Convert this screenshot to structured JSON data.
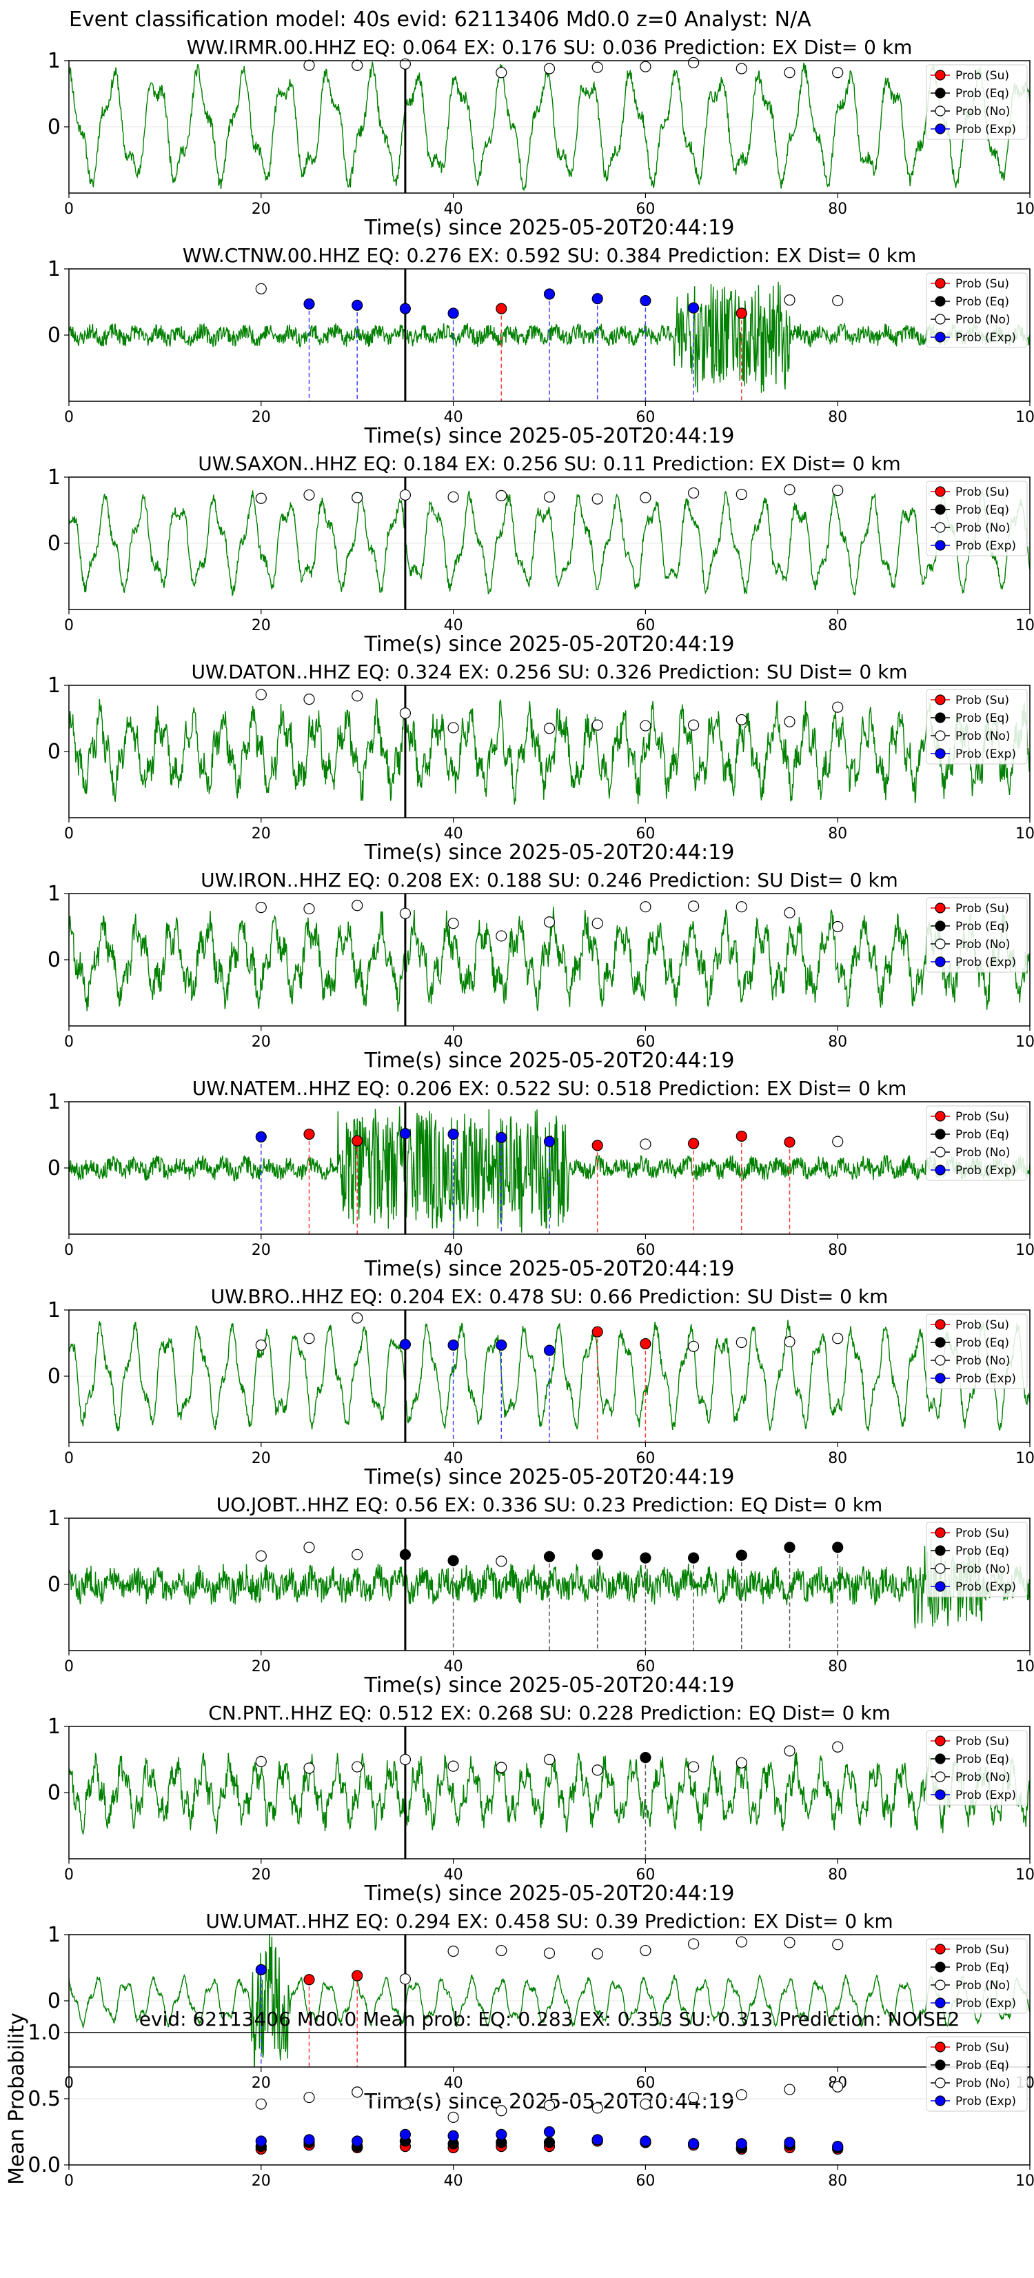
{
  "figure_title": "Event classification model: 40s evid: 62113406 Md0.0 z=0 Analyst: N/A",
  "colors": {
    "waveform": "#008000",
    "su": "#ff0000",
    "eq": "#000000",
    "no": "#ffffff",
    "exp": "#0000ff",
    "line_su": "#ff3b3b",
    "line_eq": "#555555",
    "line_exp": "#4040ff",
    "origin_line": "#000000"
  },
  "legend": [
    "Prob (Su)",
    "Prob (Eq)",
    "Prob (No)",
    "Prob (Exp)"
  ],
  "chart_data": [
    {
      "type": "line",
      "title": "WW.IRMR.00.HHZ   EQ: 0.064  EX: 0.176  SU: 0.036   Prediction: EX    Dist= 0 km",
      "xlabel": "Time(s) since 2025-05-20T20:44:19",
      "xlim": [
        0,
        100
      ],
      "xticks": [
        0,
        20,
        40,
        60,
        80,
        100
      ],
      "ylim": [
        -1,
        1
      ],
      "yticks": [
        1,
        0
      ],
      "origin_time": 35,
      "waveform": {
        "amp": 0.85,
        "mode": "osc",
        "period": 4.5,
        "seed": 11
      },
      "dots": {
        "x": [
          20,
          25,
          30,
          35,
          40,
          45,
          50,
          55,
          60,
          65,
          70,
          75,
          80
        ],
        "y": [
          null,
          0.93,
          0.93,
          0.95,
          null,
          0.82,
          0.88,
          0.9,
          0.91,
          0.97,
          0.88,
          0.82,
          0.82
        ],
        "class": [
          "",
          "No",
          "No",
          "No",
          "",
          "No",
          "No",
          "No",
          "No",
          "No",
          "No",
          "No",
          "No"
        ]
      }
    },
    {
      "type": "line",
      "title": "WW.CTNW.00.HHZ   EQ: 0.276  EX: 0.592  SU: 0.384   Prediction: EX    Dist= 0 km",
      "xlabel": "Time(s) since 2025-05-20T20:44:19",
      "xlim": [
        0,
        100
      ],
      "xticks": [
        0,
        20,
        40,
        60,
        80,
        100
      ],
      "ylim": [
        -1,
        1
      ],
      "yticks": [
        1,
        0
      ],
      "origin_time": 35,
      "waveform": {
        "amp": 0.2,
        "mode": "noise",
        "burst": [
          63,
          75,
          0.85
        ],
        "seed": 23
      },
      "dots": {
        "x": [
          20,
          25,
          30,
          35,
          40,
          45,
          50,
          55,
          60,
          65,
          70,
          75,
          80
        ],
        "y": [
          0.7,
          0.47,
          0.45,
          0.4,
          0.33,
          0.4,
          0.62,
          0.55,
          0.52,
          0.41,
          0.33,
          0.53,
          0.52
        ],
        "class": [
          "No",
          "Exp",
          "Exp",
          "Exp",
          "Exp",
          "Su",
          "Exp",
          "Exp",
          "Exp",
          "Exp",
          "Su",
          "No",
          "No"
        ]
      }
    },
    {
      "type": "line",
      "title": "UW.SAXON..HHZ   EQ: 0.184  EX: 0.256  SU: 0.11   Prediction: EX    Dist= 0 km",
      "xlabel": "Time(s) since 2025-05-20T20:44:19",
      "xlim": [
        0,
        100
      ],
      "xticks": [
        0,
        20,
        40,
        60,
        80,
        100
      ],
      "ylim": [
        -1,
        1
      ],
      "yticks": [
        1,
        0
      ],
      "origin_time": 35,
      "waveform": {
        "amp": 0.7,
        "mode": "osc",
        "period": 3.8,
        "seed": 37
      },
      "dots": {
        "x": [
          20,
          25,
          30,
          35,
          40,
          45,
          50,
          55,
          60,
          65,
          70,
          75,
          80
        ],
        "y": [
          0.68,
          0.73,
          0.69,
          0.73,
          0.7,
          0.72,
          0.7,
          0.67,
          0.69,
          0.76,
          0.74,
          0.81,
          0.8
        ],
        "class": [
          "No",
          "No",
          "No",
          "No",
          "No",
          "No",
          "No",
          "No",
          "No",
          "No",
          "No",
          "No",
          "No"
        ]
      }
    },
    {
      "type": "line",
      "title": "UW.DATON..HHZ   EQ: 0.324  EX: 0.256  SU: 0.326   Prediction: SU    Dist= 0 km",
      "xlabel": "Time(s) since 2025-05-20T20:44:19",
      "xlim": [
        0,
        100
      ],
      "xticks": [
        0,
        20,
        40,
        60,
        80,
        100
      ],
      "ylim": [
        -1,
        1
      ],
      "yticks": [
        1,
        0
      ],
      "origin_time": 35,
      "waveform": {
        "amp": 0.75,
        "mode": "mix",
        "period": 3.2,
        "seed": 41
      },
      "dots": {
        "x": [
          20,
          25,
          30,
          35,
          40,
          45,
          50,
          55,
          60,
          65,
          70,
          75,
          80
        ],
        "y": [
          0.86,
          0.79,
          0.84,
          0.58,
          0.36,
          null,
          0.35,
          0.4,
          0.39,
          0.4,
          0.48,
          0.45,
          0.67
        ],
        "class": [
          "No",
          "No",
          "No",
          "No",
          "No",
          "",
          "No",
          "No",
          "No",
          "No",
          "No",
          "No",
          "No"
        ]
      }
    },
    {
      "type": "line",
      "title": "UW.IRON..HHZ   EQ: 0.208  EX: 0.188  SU: 0.246   Prediction: SU    Dist= 0 km",
      "xlabel": "Time(s) since 2025-05-20T20:44:19",
      "xlim": [
        0,
        100
      ],
      "xticks": [
        0,
        20,
        40,
        60,
        80,
        100
      ],
      "ylim": [
        -1,
        1
      ],
      "yticks": [
        1,
        0
      ],
      "origin_time": 35,
      "waveform": {
        "amp": 0.75,
        "mode": "mix",
        "period": 3.6,
        "seed": 53
      },
      "dots": {
        "x": [
          20,
          25,
          30,
          35,
          40,
          45,
          50,
          55,
          60,
          65,
          70,
          75,
          80
        ],
        "y": [
          0.79,
          0.77,
          0.82,
          0.7,
          0.55,
          0.36,
          0.57,
          0.55,
          0.8,
          0.81,
          0.8,
          0.71,
          0.5
        ],
        "class": [
          "No",
          "No",
          "No",
          "No",
          "No",
          "No",
          "No",
          "No",
          "No",
          "No",
          "No",
          "No",
          "No"
        ]
      }
    },
    {
      "type": "line",
      "title": "UW.NATEM..HHZ   EQ: 0.206  EX: 0.522  SU: 0.518   Prediction: EX    Dist= 0 km",
      "xlabel": "Time(s) since 2025-05-20T20:44:19",
      "xlim": [
        0,
        100
      ],
      "xticks": [
        0,
        20,
        40,
        60,
        80,
        100
      ],
      "ylim": [
        -1,
        1
      ],
      "yticks": [
        1,
        0
      ],
      "origin_time": 35,
      "waveform": {
        "amp": 0.22,
        "mode": "noise",
        "burst": [
          28,
          52,
          0.9
        ],
        "seed": 67
      },
      "dots": {
        "x": [
          20,
          25,
          30,
          35,
          40,
          45,
          50,
          55,
          60,
          65,
          70,
          75,
          80
        ],
        "y": [
          0.47,
          0.51,
          0.41,
          0.52,
          0.51,
          0.46,
          0.4,
          0.34,
          0.36,
          0.37,
          0.48,
          0.39,
          0.4
        ],
        "class": [
          "Exp",
          "Su",
          "Su",
          "Exp",
          "Exp",
          "Exp",
          "Exp",
          "Su",
          "No",
          "Su",
          "Su",
          "Su",
          "No"
        ]
      }
    },
    {
      "type": "line",
      "title": "UW.BRO..HHZ   EQ: 0.204  EX: 0.478  SU: 0.66   Prediction: SU    Dist= 0 km",
      "xlabel": "Time(s) since 2025-05-20T20:44:19",
      "xlim": [
        0,
        100
      ],
      "xticks": [
        0,
        20,
        40,
        60,
        80,
        100
      ],
      "ylim": [
        -1,
        1
      ],
      "yticks": [
        1,
        0
      ],
      "origin_time": 35,
      "waveform": {
        "amp": 0.75,
        "mode": "osc",
        "period": 3.4,
        "seed": 71
      },
      "dots": {
        "x": [
          20,
          25,
          30,
          35,
          40,
          45,
          50,
          55,
          60,
          65,
          70,
          75,
          80
        ],
        "y": [
          0.47,
          0.57,
          0.88,
          0.48,
          0.47,
          0.47,
          0.39,
          0.67,
          0.49,
          0.45,
          0.51,
          0.52,
          0.57
        ],
        "class": [
          "No",
          "No",
          "No",
          "Exp",
          "Exp",
          "Exp",
          "Exp",
          "Su",
          "Su",
          "No",
          "No",
          "No",
          "No"
        ]
      }
    },
    {
      "type": "line",
      "title": "UO.JOBT..HHZ   EQ: 0.56  EX: 0.336  SU: 0.23   Prediction: EQ    Dist= 0 km",
      "xlabel": "Time(s) since 2025-05-20T20:44:19",
      "xlim": [
        0,
        100
      ],
      "xticks": [
        0,
        20,
        40,
        60,
        80,
        100
      ],
      "ylim": [
        -1,
        1
      ],
      "yticks": [
        1,
        0
      ],
      "origin_time": 35,
      "waveform": {
        "amp": 0.35,
        "mode": "noise",
        "burst": [
          88,
          95,
          0.6
        ],
        "seed": 83
      },
      "dots": {
        "x": [
          20,
          25,
          30,
          35,
          40,
          45,
          50,
          55,
          60,
          65,
          70,
          75,
          80
        ],
        "y": [
          0.43,
          0.56,
          0.45,
          0.45,
          0.36,
          0.35,
          0.42,
          0.45,
          0.4,
          0.4,
          0.44,
          0.56,
          0.56
        ],
        "class": [
          "No",
          "No",
          "No",
          "Eq",
          "Eq",
          "No",
          "Eq",
          "Eq",
          "Eq",
          "Eq",
          "Eq",
          "Eq",
          "Eq"
        ]
      }
    },
    {
      "type": "line",
      "title": "CN.PNT..HHZ   EQ: 0.512  EX: 0.268  SU: 0.228   Prediction: EQ    Dist= 0 km",
      "xlabel": "Time(s) since 2025-05-20T20:44:19",
      "xlim": [
        0,
        100
      ],
      "xticks": [
        0,
        20,
        40,
        60,
        80,
        100
      ],
      "ylim": [
        -1,
        1
      ],
      "yticks": [
        1,
        0
      ],
      "origin_time": 35,
      "waveform": {
        "amp": 0.6,
        "mode": "mix",
        "period": 2.8,
        "seed": 97
      },
      "dots": {
        "x": [
          20,
          25,
          30,
          35,
          40,
          45,
          50,
          55,
          60,
          65,
          70,
          75,
          80
        ],
        "y": [
          0.47,
          0.37,
          0.39,
          0.5,
          0.4,
          0.38,
          0.5,
          0.34,
          0.53,
          0.39,
          0.45,
          0.63,
          0.69
        ],
        "class": [
          "No",
          "No",
          "No",
          "No",
          "No",
          "No",
          "No",
          "No",
          "Eq",
          "No",
          "No",
          "No",
          "No"
        ]
      }
    },
    {
      "type": "line",
      "title": "UW.UMAT..HHZ   EQ: 0.294  EX: 0.458  SU: 0.39   Prediction: EX    Dist= 0 km",
      "xlabel": "Time(s) since 2025-05-20T20:44:19",
      "xlim": [
        0,
        100
      ],
      "xticks": [
        0,
        20,
        40,
        60,
        80,
        100
      ],
      "ylim": [
        -1,
        1
      ],
      "yticks": [
        1,
        0
      ],
      "origin_time": 35,
      "waveform": {
        "amp": 0.35,
        "mode": "osc",
        "period": 3.0,
        "burst": [
          19,
          23,
          0.95
        ],
        "seed": 101
      },
      "dots": {
        "x": [
          20,
          25,
          30,
          35,
          40,
          45,
          50,
          55,
          60,
          65,
          70,
          75,
          80
        ],
        "y": [
          0.47,
          0.32,
          0.38,
          0.33,
          0.75,
          0.76,
          0.72,
          0.71,
          0.76,
          0.86,
          0.89,
          0.88,
          0.85
        ],
        "class": [
          "Exp",
          "Su",
          "Su",
          "No",
          "No",
          "No",
          "No",
          "No",
          "No",
          "No",
          "No",
          "No",
          "No"
        ]
      }
    },
    {
      "type": "scatter",
      "title": "evid: 62113406  Md0.0   Mean prob:   EQ: 0.283  EX: 0.353  SU: 0.313   Prediction: NOISE2",
      "ylabel": "Mean Probability",
      "xlim": [
        0,
        100
      ],
      "xticks": [
        0,
        20,
        40,
        60,
        80,
        100
      ],
      "ylim": [
        0,
        1
      ],
      "yticks": [
        0.0,
        0.5,
        1.0
      ],
      "ytick_labels": [
        "0.0",
        "0.5",
        "1.0"
      ],
      "grid": true,
      "x": [
        20,
        25,
        30,
        35,
        40,
        45,
        50,
        55,
        60,
        65,
        70,
        75,
        80
      ],
      "series": [
        {
          "name": "Prob (Su)",
          "class": "Su",
          "values": [
            0.12,
            0.15,
            0.13,
            0.14,
            0.13,
            0.14,
            0.14,
            0.18,
            0.17,
            0.15,
            0.12,
            0.13,
            0.12
          ]
        },
        {
          "name": "Prob (Eq)",
          "class": "Eq",
          "values": [
            0.14,
            0.17,
            0.14,
            0.18,
            0.16,
            0.17,
            0.17,
            0.19,
            0.17,
            0.16,
            0.13,
            0.15,
            0.13
          ]
        },
        {
          "name": "Prob (No)",
          "class": "No",
          "values": [
            0.46,
            0.51,
            0.55,
            0.46,
            0.36,
            0.41,
            0.45,
            0.43,
            0.46,
            0.51,
            0.53,
            0.57,
            0.59
          ]
        },
        {
          "name": "Prob (Exp)",
          "class": "Exp",
          "values": [
            0.18,
            0.19,
            0.18,
            0.23,
            0.22,
            0.23,
            0.25,
            0.19,
            0.18,
            0.16,
            0.16,
            0.17,
            0.14
          ]
        }
      ]
    }
  ]
}
